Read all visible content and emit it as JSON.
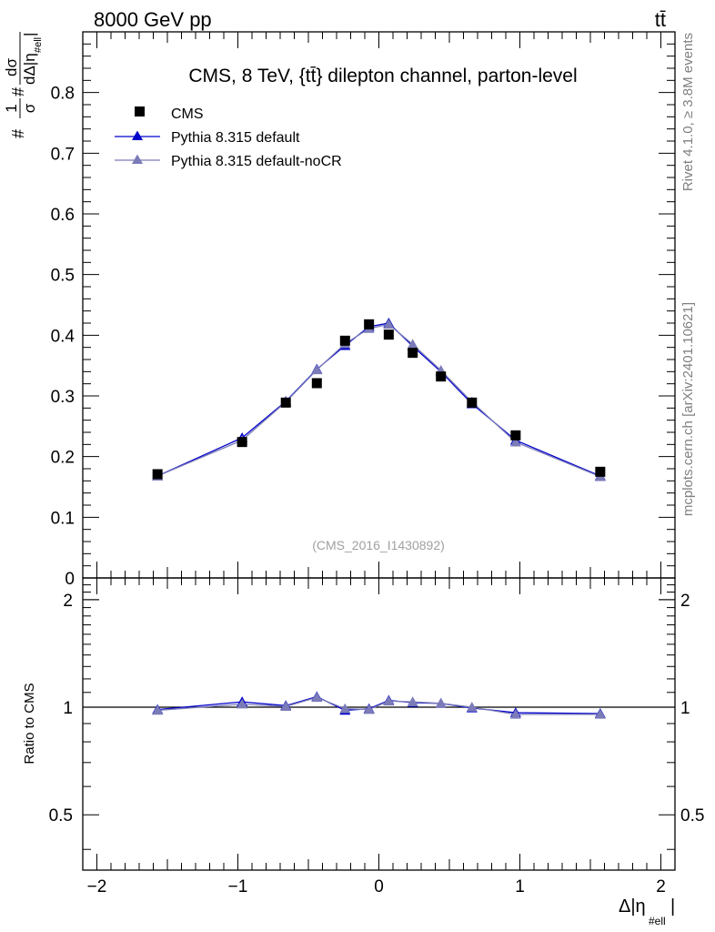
{
  "header": {
    "left": "8000 GeV pp",
    "right": "tt̄"
  },
  "side_text": {
    "rivet": "Rivet 4.1.0, ≥ 3.8M events",
    "mcplots": "mcplots.cern.ch [arXiv:2401.10621]"
  },
  "chart_data": [
    {
      "type": "scatter",
      "panel": "main",
      "title": "CMS, 8 TeV, {tt̄} dilepton channel, parton-level",
      "watermark": "(CMS_2016_I1430892)",
      "ylabel": "#1/σ# dσ/dΔ|η_#ell|",
      "ylabel_parts": {
        "prefix": "#",
        "frac1_num": "1",
        "frac1_den": "σ",
        "mid": "#",
        "frac2_num": "dσ",
        "frac2_den": "dΔ|η",
        "den_sub": "#ell",
        "den_end": "|"
      },
      "xlim": [
        -2.1,
        2.1
      ],
      "ylim": [
        0,
        0.9
      ],
      "yticks": [
        0.1,
        0.2,
        0.3,
        0.4,
        0.5,
        0.6,
        0.7,
        0.8
      ],
      "ytick_labels": [
        "0.1",
        "0.2",
        "0.3",
        "0.4",
        "0.5",
        "0.6",
        "0.7",
        "0.8"
      ],
      "y_zero_label": "0",
      "legend": [
        {
          "name": "CMS",
          "color": "#000000",
          "marker": "square"
        },
        {
          "name": "Pythia 8.315 default",
          "color": "#0000cc",
          "marker": "triangle"
        },
        {
          "name": "Pythia 8.315 default-noCR",
          "color": "#7b7bb8",
          "marker": "triangle"
        }
      ],
      "series": [
        {
          "name": "CMS",
          "x": [
            -1.57,
            -0.97,
            -0.66,
            -0.44,
            -0.24,
            -0.07,
            0.07,
            0.24,
            0.44,
            0.66,
            0.97,
            1.57
          ],
          "values": [
            0.171,
            0.224,
            0.289,
            0.321,
            0.391,
            0.418,
            0.401,
            0.371,
            0.332,
            0.289,
            0.235,
            0.175
          ]
        },
        {
          "name": "Pythia 8.315 default",
          "x": [
            -1.57,
            -0.97,
            -0.66,
            -0.44,
            -0.24,
            -0.07,
            0.07,
            0.24,
            0.44,
            0.66,
            0.97,
            1.57
          ],
          "values": [
            0.168,
            0.231,
            0.291,
            0.344,
            0.383,
            0.414,
            0.42,
            0.382,
            0.34,
            0.287,
            0.227,
            0.168
          ]
        },
        {
          "name": "Pythia 8.315 default-noCR",
          "x": [
            -1.57,
            -0.97,
            -0.66,
            -0.44,
            -0.24,
            -0.07,
            0.07,
            0.24,
            0.44,
            0.66,
            0.97,
            1.57
          ],
          "values": [
            0.168,
            0.227,
            0.29,
            0.343,
            0.386,
            0.411,
            0.418,
            0.385,
            0.342,
            0.29,
            0.224,
            0.167
          ]
        }
      ]
    },
    {
      "type": "line",
      "panel": "ratio",
      "ylabel": "Ratio to CMS",
      "xlabel": "Δ|η_#ell|",
      "xlabel_parts": {
        "main": "Δ|η",
        "sub": "#ell",
        "end": "|"
      },
      "xlim": [
        -2.1,
        2.1
      ],
      "xticks": [
        -2,
        -1,
        0,
        1,
        2
      ],
      "xtick_labels": [
        "−2",
        "−1",
        "0",
        "1",
        "2"
      ],
      "ylim": [
        0.35,
        2.3
      ],
      "yscale": "log",
      "yticks": [
        0.5,
        1,
        2
      ],
      "ytick_labels": [
        "0.5",
        "1",
        "2"
      ],
      "reference": 1,
      "series": [
        {
          "name": "Pythia 8.315 default",
          "x": [
            -1.57,
            -0.97,
            -0.66,
            -0.44,
            -0.24,
            -0.07,
            0.07,
            0.24,
            0.44,
            0.66,
            0.97,
            1.57
          ],
          "values": [
            0.985,
            1.035,
            1.01,
            1.07,
            0.98,
            0.99,
            1.045,
            1.03,
            1.025,
            0.995,
            0.965,
            0.96
          ]
        },
        {
          "name": "Pythia 8.315 default-noCR",
          "x": [
            -1.57,
            -0.97,
            -0.66,
            -0.44,
            -0.24,
            -0.07,
            0.07,
            0.24,
            0.44,
            0.66,
            0.97,
            1.57
          ],
          "values": [
            0.98,
            1.02,
            1.005,
            1.065,
            0.99,
            0.985,
            1.04,
            1.035,
            1.025,
            1.0,
            0.955,
            0.955
          ]
        }
      ]
    }
  ]
}
